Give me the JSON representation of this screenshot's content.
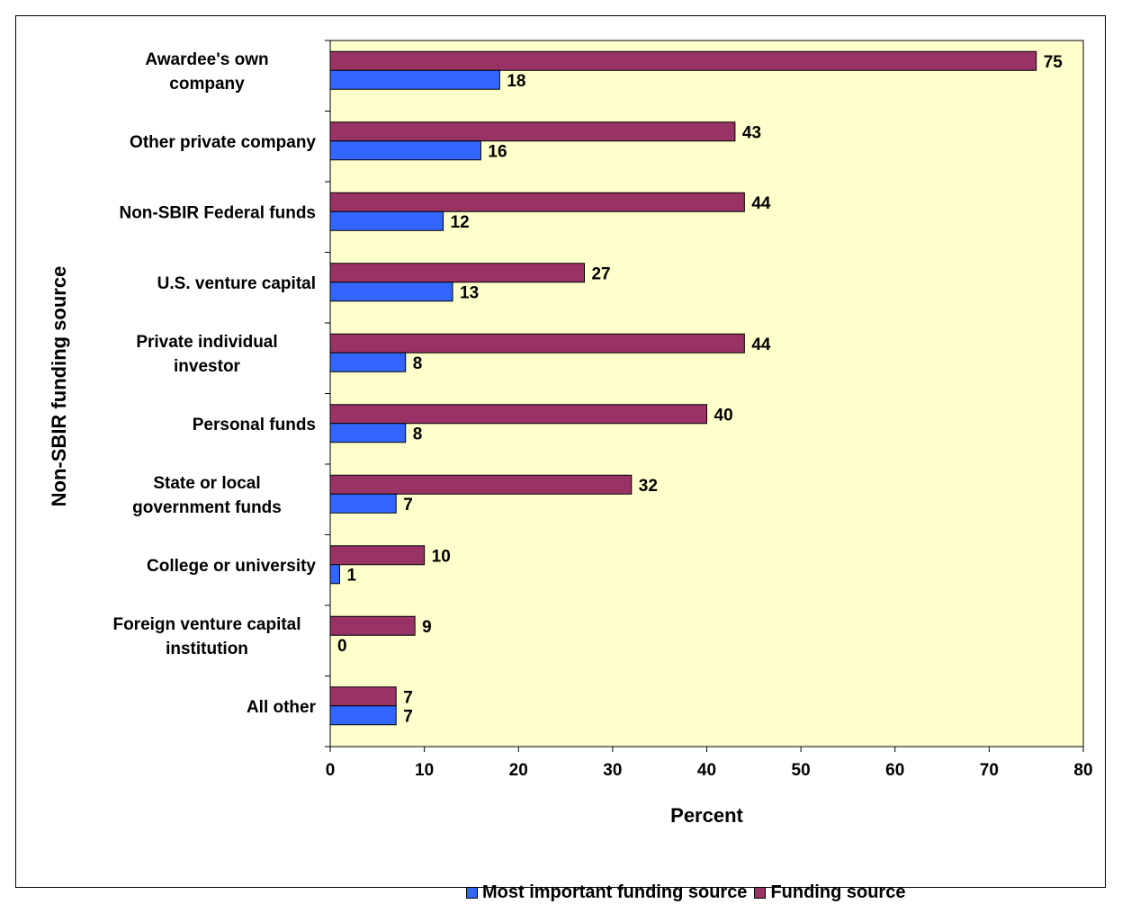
{
  "chart_data": {
    "type": "bar",
    "orientation": "horizontal",
    "categories": [
      [
        "Awardee's own",
        "company"
      ],
      [
        "Other private company"
      ],
      [
        "Non-SBIR Federal funds"
      ],
      [
        "U.S. venture capital"
      ],
      [
        "Private individual",
        "investor"
      ],
      [
        "Personal funds"
      ],
      [
        "State or local",
        "government funds"
      ],
      [
        "College or university"
      ],
      [
        "Foreign venture capital",
        "institution"
      ],
      [
        "All other"
      ]
    ],
    "series": [
      {
        "name": "Funding source",
        "color": "#993366",
        "values": [
          75,
          43,
          44,
          27,
          44,
          40,
          32,
          10,
          9,
          7
        ],
        "labels": [
          "75",
          "43",
          "44",
          "27",
          "44",
          "40",
          "32",
          "10",
          "9",
          "7"
        ]
      },
      {
        "name": "Most important funding source",
        "color": "#3366ff",
        "values": [
          18,
          16,
          12,
          13,
          8,
          8,
          7,
          1,
          0,
          7
        ],
        "labels": [
          "18",
          "16",
          "12",
          "13",
          "8",
          "8",
          "7",
          "1",
          "0",
          "7"
        ]
      }
    ],
    "xlabel": "Percent",
    "ylabel": "Non-SBIR funding source",
    "xlim": [
      0,
      80
    ],
    "xticks": [
      "0",
      "10",
      "20",
      "30",
      "40",
      "50",
      "60",
      "70",
      "80"
    ],
    "plot_background": "#ffffcc",
    "grid": false,
    "legend_position": "bottom"
  },
  "legend": {
    "items": [
      {
        "label": "Most important funding source",
        "color": "#3366ff"
      },
      {
        "label": "Funding source",
        "color": "#993366"
      }
    ]
  }
}
